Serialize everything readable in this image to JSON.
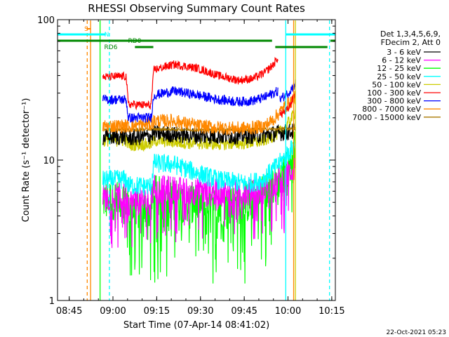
{
  "chart_data": {
    "type": "line",
    "title": "RHESSI Observing Summary Count Rates",
    "xlabel": "Start Time (07-Apr-14 08:41:02)",
    "ylabel": "Count Rate (s⁻¹ detector⁻¹)",
    "y_scale": "log",
    "ylim": [
      1,
      100
    ],
    "xlim_minutes": [
      -0.03,
      95.2
    ],
    "x_ticks": [
      {
        "label": "08:45",
        "min": 3.97
      },
      {
        "label": "09:00",
        "min": 18.97
      },
      {
        "label": "09:15",
        "min": 33.97
      },
      {
        "label": "09:30",
        "min": 48.97
      },
      {
        "label": "09:45",
        "min": 63.97
      },
      {
        "label": "10:00",
        "min": 78.97
      },
      {
        "label": "10:15",
        "min": 93.97
      }
    ],
    "y_ticks": [
      {
        "label": "1",
        "value": 1
      },
      {
        "label": "10",
        "value": 10
      },
      {
        "label": "100",
        "value": 100
      }
    ],
    "legend_header": [
      "Det 1,3,4,5,6,9,",
      "FDecim 2, Att 0"
    ],
    "legend_placement": "right",
    "series": [
      {
        "name": "3 - 6 keV",
        "color": "#000000",
        "segments": [
          [
            [
              15.5,
              14.5
            ],
            [
              23.5,
              14.7
            ],
            [
              24.2,
              14.3
            ],
            [
              32.0,
              14.8
            ],
            [
              33.0,
              15.5
            ],
            [
              40.0,
              15.2
            ],
            [
              50.0,
              14.8
            ],
            [
              60.0,
              14.8
            ],
            [
              70.0,
              15.0
            ],
            [
              76.0,
              15.6
            ],
            [
              81.5,
              16.0
            ]
          ]
        ]
      },
      {
        "name": "6 - 12 keV",
        "color": "#ff00ff",
        "segments": [
          [
            [
              15.5,
              5.4
            ],
            [
              23.5,
              5.5
            ],
            [
              24.2,
              5.0
            ],
            [
              32.0,
              5.1
            ],
            [
              33.0,
              6.3
            ],
            [
              45.0,
              6.0
            ],
            [
              55.0,
              5.8
            ],
            [
              65.0,
              5.8
            ],
            [
              70.0,
              6.0
            ],
            [
              75.0,
              7.0
            ],
            [
              78.0,
              7.5
            ],
            [
              81.5,
              9.0
            ]
          ]
        ]
      },
      {
        "name": "12 - 25 keV",
        "color": "#00ff00",
        "segments": [
          [
            [
              15.5,
              5.2
            ],
            [
              23.5,
              5.3
            ],
            [
              24.2,
              4.6
            ],
            [
              32.0,
              4.4
            ],
            [
              33.0,
              5.6
            ],
            [
              45.0,
              5.0
            ],
            [
              55.0,
              4.6
            ],
            [
              65.0,
              5.0
            ],
            [
              70.0,
              5.6
            ],
            [
              75.0,
              7.0
            ],
            [
              78.0,
              8.0
            ],
            [
              81.5,
              12.0
            ]
          ]
        ]
      },
      {
        "name": "25 - 50 keV",
        "color": "#00ffff",
        "segments": [
          [
            [
              15.5,
              7.2
            ],
            [
              23.5,
              7.3
            ],
            [
              24.2,
              6.6
            ],
            [
              32.0,
              6.5
            ],
            [
              33.0,
              9.5
            ],
            [
              40.0,
              9.3
            ],
            [
              45.0,
              8.5
            ],
            [
              55.0,
              7.2
            ],
            [
              65.0,
              6.8
            ],
            [
              70.0,
              7.2
            ],
            [
              75.0,
              9.0
            ],
            [
              78.0,
              10.5
            ],
            [
              81.5,
              13.0
            ]
          ]
        ]
      },
      {
        "name": "50 - 100 keV",
        "color": "#cccc00",
        "segments": [
          [
            [
              15.5,
              13.8
            ],
            [
              23.5,
              13.8
            ],
            [
              24.2,
              12.8
            ],
            [
              32.0,
              13.0
            ],
            [
              33.0,
              13.8
            ],
            [
              45.0,
              13.2
            ],
            [
              55.0,
              13.0
            ],
            [
              65.0,
              13.2
            ],
            [
              70.0,
              13.6
            ],
            [
              75.0,
              15.2
            ],
            [
              78.0,
              17.0
            ],
            [
              81.5,
              22.0
            ]
          ]
        ]
      },
      {
        "name": "100 - 300 keV",
        "color": "#ff0000",
        "segments": [
          [
            [
              15.5,
              39.0
            ],
            [
              23.5,
              39.5
            ],
            [
              24.2,
              25.0
            ],
            [
              32.0,
              24.5
            ],
            [
              33.0,
              44.0
            ],
            [
              40.0,
              48.0
            ],
            [
              48.0,
              45.0
            ],
            [
              55.0,
              40.0
            ],
            [
              62.0,
              37.0
            ],
            [
              67.0,
              38.0
            ],
            [
              71.0,
              42.0
            ],
            [
              74.0,
              48.0
            ],
            [
              75.6,
              54.0
            ]
          ],
          [
            [
              76.2,
              21.0
            ],
            [
              79.0,
              23.0
            ],
            [
              81.5,
              30.0
            ]
          ]
        ]
      },
      {
        "name": "300 - 800 keV",
        "color": "#0000ff",
        "segments": [
          [
            [
              15.5,
              27.0
            ],
            [
              23.5,
              27.0
            ],
            [
              24.2,
              20.0
            ],
            [
              32.0,
              20.0
            ],
            [
              33.0,
              29.0
            ],
            [
              40.0,
              31.0
            ],
            [
              48.0,
              29.0
            ],
            [
              55.0,
              27.0
            ],
            [
              62.0,
              26.0
            ],
            [
              67.0,
              26.5
            ],
            [
              71.0,
              28.0
            ],
            [
              74.0,
              30.0
            ],
            [
              75.6,
              31.0
            ]
          ],
          [
            [
              76.2,
              27.0
            ],
            [
              79.0,
              30.0
            ],
            [
              81.5,
              35.0
            ]
          ]
        ]
      },
      {
        "name": "800 - 7000 keV",
        "color": "#ff8800",
        "segments": [
          [
            [
              15.5,
              17.5
            ],
            [
              23.5,
              17.5
            ],
            [
              24.2,
              17.5
            ],
            [
              32.0,
              18.0
            ],
            [
              33.0,
              19.0
            ],
            [
              40.0,
              19.0
            ],
            [
              48.0,
              17.5
            ],
            [
              55.0,
              17.0
            ],
            [
              62.0,
              16.8
            ],
            [
              67.0,
              17.0
            ],
            [
              71.0,
              17.5
            ],
            [
              74.0,
              19.5
            ],
            [
              77.0,
              23.0
            ],
            [
              81.5,
              28.0
            ]
          ]
        ]
      },
      {
        "name": "7000 - 15000 keV",
        "color": "#aa7700",
        "segments": [
          [
            [
              15.5,
              16.5
            ],
            [
              23.5,
              16.6
            ],
            [
              24.2,
              16.4
            ],
            [
              32.0,
              16.6
            ],
            [
              33.0,
              16.6
            ],
            [
              50.0,
              16.4
            ],
            [
              65.0,
              16.5
            ],
            [
              75.0,
              16.6
            ],
            [
              81.5,
              16.8
            ]
          ]
        ]
      }
    ],
    "vertical_lines": [
      {
        "min": 10.15,
        "color": "#ff8800",
        "style": "dashed"
      },
      {
        "min": 11.3,
        "color": "#ff8800",
        "style": "solid"
      },
      {
        "min": 14.55,
        "color": "#00ff00",
        "style": "solid"
      },
      {
        "min": 17.75,
        "color": "#00ffff",
        "style": "dashed"
      },
      {
        "min": 78.2,
        "color": "#00ffff",
        "style": "solid"
      },
      {
        "min": 80.9,
        "color": "#ff8800",
        "style": "solid"
      },
      {
        "min": 81.5,
        "color": "#cccc00",
        "style": "solid"
      },
      {
        "min": 93.2,
        "color": "#00ffff",
        "style": "dashed"
      }
    ],
    "flag_bars": [
      {
        "label": "S",
        "color": "#ff8800",
        "segments": [
          [
            10.2,
            11.2
          ]
        ]
      },
      {
        "label": "N",
        "color": "#00ffff",
        "segments": [
          [
            -0.03,
            16.5
          ],
          [
            78.2,
            95.2
          ]
        ]
      },
      {
        "label": "RD0",
        "color": "#008800",
        "segments": [
          [
            -0.03,
            73.5
          ],
          [
            93.5,
            95.2
          ]
        ]
      },
      {
        "label": "RD6",
        "color": "#008800",
        "segments": [
          [
            26.5,
            32.8
          ],
          [
            74.6,
            92.5
          ]
        ]
      }
    ],
    "footer_date": "22-Oct-2021 05:23"
  }
}
